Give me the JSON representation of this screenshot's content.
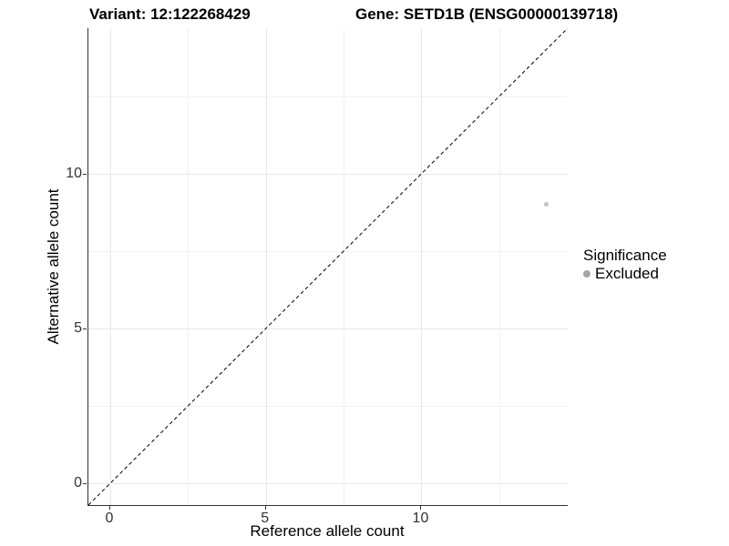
{
  "plot": {
    "title_left": "Variant: 12:122268429",
    "title_right": "Gene: SETD1B (ENSG00000139718)",
    "xlabel": "Reference allele count",
    "ylabel": "Alternative allele count",
    "legend": {
      "title": "Significance",
      "items": [
        {
          "label": "Excluded",
          "color": "#a6a6a6"
        }
      ]
    }
  },
  "chart_data": {
    "type": "scatter",
    "title": "Variant: 12:122268429   Gene: SETD1B (ENSG00000139718)",
    "xlabel": "Reference allele count",
    "ylabel": "Alternative allele count",
    "xlim": [
      -0.7,
      14.7
    ],
    "ylim": [
      -0.7,
      14.7
    ],
    "x_ticks": [
      0,
      5,
      10
    ],
    "y_ticks": [
      0,
      5,
      10
    ],
    "x_minor_ticks": [
      2.5,
      7.5,
      12.5
    ],
    "y_minor_ticks": [
      2.5,
      7.5,
      12.5
    ],
    "grid": true,
    "legend_position": "right",
    "series": [
      {
        "name": "Excluded",
        "color": "#c2c2c2",
        "points": [
          {
            "x": 14,
            "y": 9
          }
        ]
      }
    ],
    "reference_line": {
      "kind": "identity",
      "style": "dashed",
      "color": "#000000",
      "from": [
        -0.7,
        -0.7
      ],
      "to": [
        14.7,
        14.7
      ]
    }
  }
}
